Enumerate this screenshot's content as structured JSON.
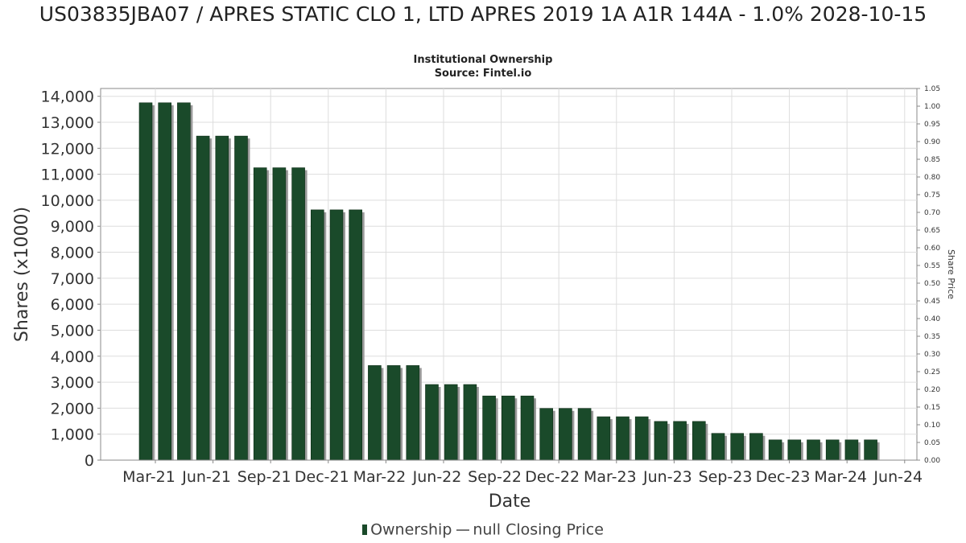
{
  "title": "US03835JBA07 / APRES STATIC CLO 1, LTD APRES 2019 1A A1R 144A - 1.0% 2028-10-15",
  "subtitle": "Institutional Ownership",
  "source": "Source: Fintel.io",
  "legend": {
    "ownership": "Ownership",
    "price": "null Closing Price"
  },
  "colors": {
    "bar": "#1a4a2a",
    "bar_shadow": "#9a9a9a",
    "grid": "#dddddd"
  },
  "chart_data": {
    "type": "bar",
    "xlabel": "Date",
    "ylabel": "Shares (x1000)",
    "y2label": "Share Price",
    "ylim": [
      0,
      14300
    ],
    "y2lim": [
      0,
      1.05
    ],
    "yticks": [
      0,
      1000,
      2000,
      3000,
      4000,
      5000,
      6000,
      7000,
      8000,
      9000,
      10000,
      11000,
      12000,
      13000,
      14000
    ],
    "yticklabels": [
      "0",
      "1,000",
      "2,000",
      "3,000",
      "4,000",
      "5,000",
      "6,000",
      "7,000",
      "8,000",
      "9,000",
      "10,000",
      "11,000",
      "12,000",
      "13,000",
      "14,000"
    ],
    "y2ticklabels": [
      "0.00",
      "0.05",
      "0.10",
      "0.15",
      "0.20",
      "0.25",
      "0.30",
      "0.35",
      "0.40",
      "0.45",
      "0.50",
      "0.55",
      "0.60",
      "0.65",
      "0.70",
      "0.75",
      "0.80",
      "0.85",
      "0.90",
      "0.95",
      "1.00",
      "1.05"
    ],
    "xticklabels": [
      "Mar-21",
      "Jun-21",
      "Sep-21",
      "Dec-21",
      "Mar-22",
      "Jun-22",
      "Sep-22",
      "Dec-22",
      "Mar-23",
      "Jun-23",
      "Sep-23",
      "Dec-23",
      "Mar-24",
      "Jun-24"
    ],
    "grid": true,
    "legend_position": "bottom",
    "series": [
      {
        "name": "Ownership",
        "values": [
          13750,
          13750,
          13750,
          12470,
          12470,
          12470,
          11250,
          11250,
          11250,
          9630,
          9630,
          9630,
          3640,
          3640,
          3640,
          2910,
          2910,
          2910,
          2470,
          2470,
          2470,
          1990,
          1990,
          1990,
          1670,
          1670,
          1670,
          1490,
          1490,
          1490,
          1030,
          1030,
          1030,
          780,
          780,
          780,
          780,
          780,
          780
        ]
      }
    ]
  }
}
